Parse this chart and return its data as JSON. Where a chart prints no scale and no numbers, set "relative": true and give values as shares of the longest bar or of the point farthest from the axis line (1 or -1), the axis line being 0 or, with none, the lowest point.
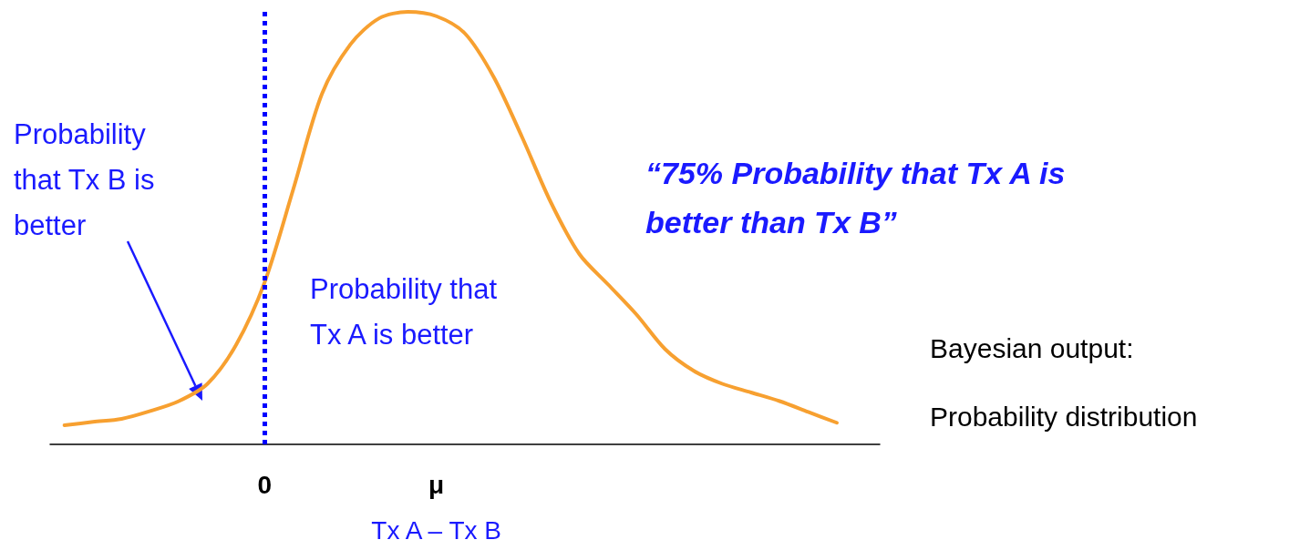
{
  "chart_data": {
    "type": "line",
    "relative": true,
    "categories": [
      null,
      null,
      null,
      null,
      null,
      null,
      null,
      "0",
      null,
      null,
      null,
      null,
      null,
      "μ",
      null,
      null,
      null,
      null,
      null,
      null,
      null,
      null,
      null,
      null,
      null,
      null,
      null,
      null,
      null
    ],
    "series": [
      {
        "color": "#f7a030",
        "values": [
          0.044,
          0.052,
          0.059,
          0.077,
          0.1,
          0.14,
          0.23,
          0.375,
          0.59,
          0.81,
          0.925,
          0.985,
          1,
          0.99,
          0.95,
          0.85,
          0.71,
          0.56,
          0.44,
          0.37,
          0.3,
          0.22,
          0.17,
          0.14,
          0.12,
          0.1,
          0.075,
          0.05,
          null
        ]
      }
    ],
    "xlabel": "Tx A – Tx B",
    "ref_lines": [
      {
        "axis": "x",
        "value": "0",
        "color": "#0000ff",
        "line_style": "dotted"
      }
    ],
    "annotations": [
      "Probability that Tx B is better",
      "Probability that Tx A is better",
      "“75% Probability that Tx A is better than Tx B”",
      "Bayesian output:",
      "Probability distribution"
    ],
    "marker": "none",
    "line_style": "solid"
  }
}
